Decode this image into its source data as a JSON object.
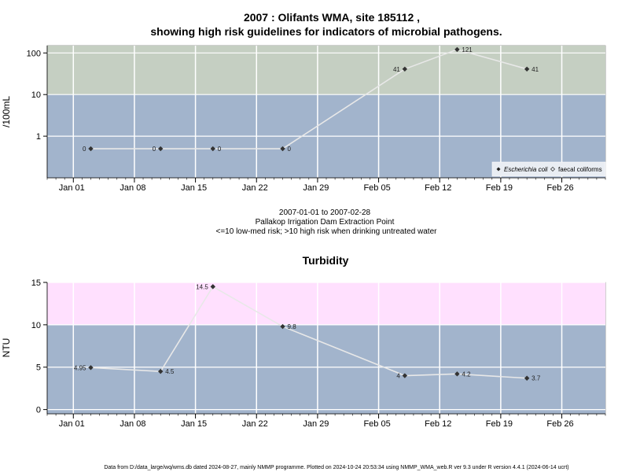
{
  "title": {
    "line1": "2007 : Olifants WMA, site 185112 ,",
    "line2": "showing high risk guidelines for indicators of microbial pathogens."
  },
  "caption": {
    "range": "2007-01-01 to 2007-02-28",
    "site": "Pallakop Irrigation Dam Extraction Point",
    "risk": "<=10 low-med risk; >10 high risk when drinking untreated water"
  },
  "footer": "Data from D:/data_large/wq/wms.db dated 2024-08-27, mainly NMMP programme. Plotted on 2024-10-24 20:53:34 using NMMP_WMA_web.R ver 9.3 under R version 4.4.1 (2024-06-14 ucrt)",
  "colors": {
    "low_band": "#a2b4cc",
    "high_band_top": "#c5cfc2",
    "high_band_bottom": "#ffe0fe",
    "line": "#e8e8e8",
    "grid": "#ffffff",
    "point": "#333333"
  },
  "chart_data": [
    {
      "type": "line",
      "ylabel": "/100mL",
      "yscale": "log",
      "ylim": [
        0.1,
        150
      ],
      "yticks": [
        1,
        10,
        100
      ],
      "ytick_labels": [
        "1",
        "10",
        "100"
      ],
      "threshold": 10,
      "x_dates": [
        "Jan 01",
        "Jan 08",
        "Jan 15",
        "Jan 22",
        "Jan 29",
        "Feb 05",
        "Feb 12",
        "Feb 19",
        "Feb 26"
      ],
      "xlim": [
        "2006-12-29",
        "2007-03-03"
      ],
      "legend": {
        "position": "bottom-right",
        "entries": [
          "Escherichia coli",
          "faecal coliforms"
        ]
      },
      "series": [
        {
          "name": "Escherichia coli",
          "x": [
            "2007-01-03",
            "2007-01-11",
            "2007-01-17",
            "2007-01-25",
            "2007-02-08",
            "2007-02-14",
            "2007-02-22"
          ],
          "values": [
            0.5,
            0.5,
            0.5,
            0.5,
            41,
            121,
            41
          ],
          "labels": [
            "0",
            "0",
            "0",
            "0",
            "41",
            "121",
            "41"
          ],
          "label_side": [
            "left",
            "left",
            "right",
            "right",
            "left",
            "right",
            "right"
          ]
        }
      ]
    },
    {
      "type": "line",
      "title": "Turbidity",
      "ylabel": "NTU",
      "ylim": [
        -0.5,
        15
      ],
      "yticks": [
        0,
        5,
        10,
        15
      ],
      "ytick_labels": [
        "0",
        "5",
        "10",
        "15"
      ],
      "threshold": 10,
      "x_dates": [
        "Jan 01",
        "Jan 08",
        "Jan 15",
        "Jan 22",
        "Jan 29",
        "Feb 05",
        "Feb 12",
        "Feb 19",
        "Feb 26"
      ],
      "xlim": [
        "2006-12-29",
        "2007-03-03"
      ],
      "series": [
        {
          "x": [
            "2007-01-03",
            "2007-01-11",
            "2007-01-17",
            "2007-01-25",
            "2007-02-08",
            "2007-02-14",
            "2007-02-22"
          ],
          "values": [
            4.95,
            4.5,
            14.5,
            9.8,
            4,
            4.2,
            3.7
          ],
          "labels": [
            "4.95",
            "4.5",
            "14.5",
            "9.8",
            "4",
            "4.2",
            "3.7"
          ],
          "label_side": [
            "left",
            "right",
            "left",
            "right",
            "left",
            "right",
            "right"
          ]
        }
      ]
    }
  ]
}
